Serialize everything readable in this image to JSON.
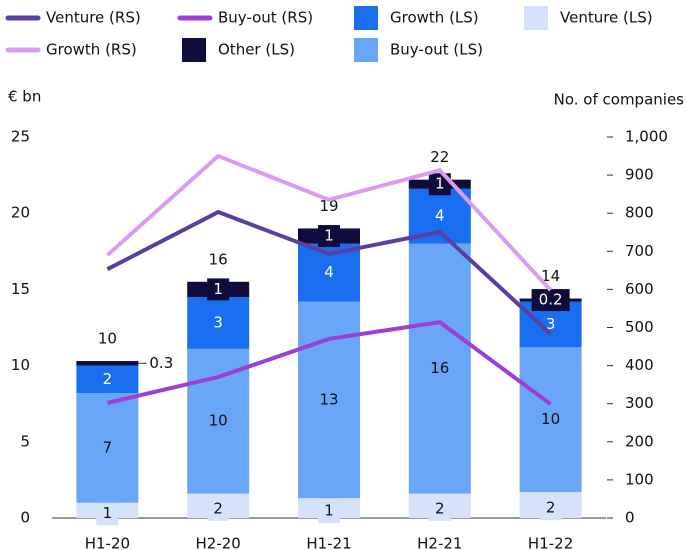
{
  "chart_data": {
    "type": "bar",
    "categories": [
      "H1-20",
      "H2-20",
      "H1-21",
      "H2-21",
      "H1-22"
    ],
    "y_label": "€ bn",
    "y2_label": "No. of companies",
    "ylim": [
      0,
      25
    ],
    "yticks": [
      0,
      5,
      10,
      15,
      20,
      25
    ],
    "y2lim": [
      0,
      1000
    ],
    "y2ticks": [
      0,
      100,
      200,
      300,
      400,
      500,
      600,
      700,
      800,
      900,
      {
        "value": 1000,
        "label": "1,000"
      }
    ],
    "bar_series": [
      {
        "name": "Venture (LS)",
        "color": "#d6e2fb",
        "values": [
          1.0,
          1.6,
          1.3,
          1.6,
          1.7
        ],
        "value_labels": [
          "1",
          "2",
          "1",
          "2",
          "2"
        ]
      },
      {
        "name": "Buy-out (LS)",
        "color": "#6aa6f8",
        "values": [
          7.2,
          9.5,
          12.9,
          16.4,
          9.5
        ],
        "value_labels": [
          "7",
          "10",
          "13",
          "16",
          "10"
        ]
      },
      {
        "name": "Growth (LS)",
        "color": "#1a6ff0",
        "values": [
          1.8,
          3.4,
          3.8,
          3.6,
          3.0
        ],
        "value_labels": [
          "2",
          "3",
          "4",
          "4",
          "3"
        ]
      },
      {
        "name": "Other (LS)",
        "color": "#0d0c3d",
        "values": [
          0.3,
          1.0,
          1.0,
          0.6,
          0.2
        ],
        "value_labels": [
          "0.3",
          "1",
          "1",
          "1",
          "0.2"
        ]
      }
    ],
    "totals": [
      10.3,
      15.5,
      19.0,
      22.2,
      14.4
    ],
    "total_labels": [
      "10",
      "16",
      "19",
      "22",
      "14"
    ],
    "line_series": [
      {
        "name": "Venture (RS)",
        "color": "#5b3fa0",
        "axis": "y2",
        "values": [
          653,
          803,
          693,
          751,
          483
        ]
      },
      {
        "name": "Buy-out (RS)",
        "color": "#9b3fd6",
        "axis": "y2",
        "values": [
          302,
          370,
          470,
          514,
          299
        ]
      },
      {
        "name": "Growth (RS)",
        "color": "#d89cf5",
        "axis": "y2",
        "values": [
          690,
          950,
          835,
          913,
          598
        ]
      }
    ]
  }
}
